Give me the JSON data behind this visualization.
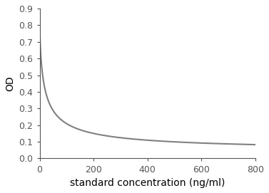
{
  "xlabel": "standard concentration (ng/ml)",
  "ylabel": "OD",
  "xlim": [
    0,
    800
  ],
  "ylim": [
    0,
    0.9
  ],
  "xticks": [
    0,
    200,
    400,
    600,
    800
  ],
  "yticks": [
    0,
    0.1,
    0.2,
    0.3,
    0.4,
    0.5,
    0.6,
    0.7,
    0.8,
    0.9
  ],
  "line_color": "#808080",
  "line_width": 1.5,
  "background_color": "#ffffff",
  "curve_A": 0.82,
  "curve_D": 0.04,
  "curve_C": 18.0,
  "curve_B": 0.75,
  "xlabel_fontsize": 10,
  "ylabel_fontsize": 10,
  "tick_fontsize": 9,
  "spine_color": "#555555"
}
